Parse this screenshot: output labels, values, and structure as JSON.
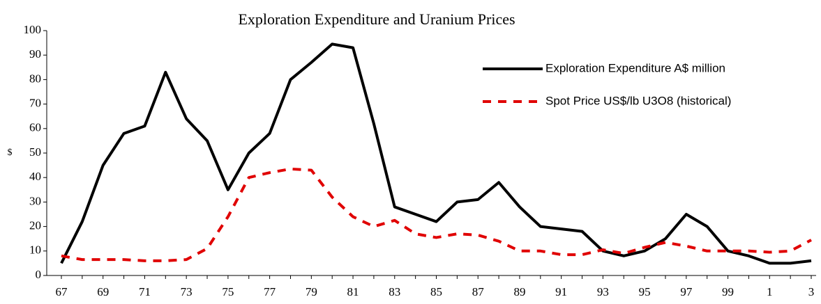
{
  "chart_data": {
    "type": "line",
    "title": "Exploration Expenditure and Uranium Prices",
    "y_label": "$",
    "categories": [
      "67",
      null,
      "69",
      null,
      "71",
      null,
      "73",
      null,
      "75",
      null,
      "77",
      null,
      "79",
      null,
      "81",
      null,
      "83",
      null,
      "85",
      null,
      "87",
      null,
      "89",
      null,
      "91",
      null,
      "93",
      null,
      "95",
      null,
      "97",
      null,
      "99",
      null,
      "1",
      null,
      "3"
    ],
    "series": [
      {
        "name": "Exploration Expenditure A$ million",
        "color": "#000000",
        "dash": "solid",
        "values": [
          5,
          22,
          45,
          58,
          61,
          83,
          64,
          55,
          35,
          50,
          58,
          80,
          87,
          94.5,
          93,
          62,
          28,
          25,
          22,
          30,
          31,
          38,
          28,
          20,
          19,
          18,
          10,
          8,
          10,
          15,
          25,
          20,
          10,
          8,
          5,
          5,
          6
        ]
      },
      {
        "name": "Spot Price US$/lb U3O8 (historical)",
        "color": "#e00000",
        "dash": "dashed",
        "values": [
          8,
          6.5,
          6.5,
          6.5,
          6,
          6,
          6.5,
          11,
          24,
          40,
          42,
          43.5,
          43,
          32,
          24,
          20,
          22.5,
          17,
          15.5,
          17,
          16.5,
          14,
          10,
          10,
          8.5,
          8.5,
          10.5,
          9,
          11.5,
          13.5,
          12,
          10,
          10,
          10,
          9.5,
          10,
          14.5
        ]
      }
    ],
    "ylim": [
      0,
      100
    ],
    "yticks": [
      0,
      10,
      20,
      30,
      40,
      50,
      60,
      70,
      80,
      90,
      100
    ],
    "legend": "upper right"
  }
}
